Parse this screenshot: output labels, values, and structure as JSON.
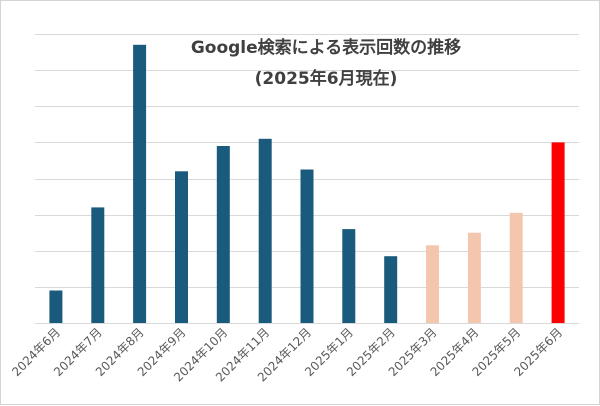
{
  "chart_data": {
    "type": "bar",
    "title": "Google検索による表示回数の推移",
    "subtitle": "(2025年6月現在)",
    "xlabel": "",
    "ylabel": "",
    "categories": [
      "2024年6月",
      "2024年7月",
      "2024年8月",
      "2024年9月",
      "2024年10月",
      "2024年11月",
      "2024年12月",
      "2025年1月",
      "2025年2月",
      "2025年3月",
      "2025年4月",
      "2025年5月",
      "2025年6月"
    ],
    "values": [
      0.9,
      3.2,
      7.7,
      4.2,
      4.9,
      5.1,
      4.25,
      2.6,
      1.85,
      2.15,
      2.5,
      3.05,
      5.0
    ],
    "ylim": [
      0,
      8
    ],
    "y_axis_labels": "hidden",
    "grid": true,
    "legend": "none",
    "bar_colors": [
      "#1a5b7d",
      "#1a5b7d",
      "#1a5b7d",
      "#1a5b7d",
      "#1a5b7d",
      "#1a5b7d",
      "#1a5b7d",
      "#1a5b7d",
      "#1a5b7d",
      "#f4c6ad",
      "#f4c6ad",
      "#f4c6ad",
      "#ff0000"
    ]
  }
}
